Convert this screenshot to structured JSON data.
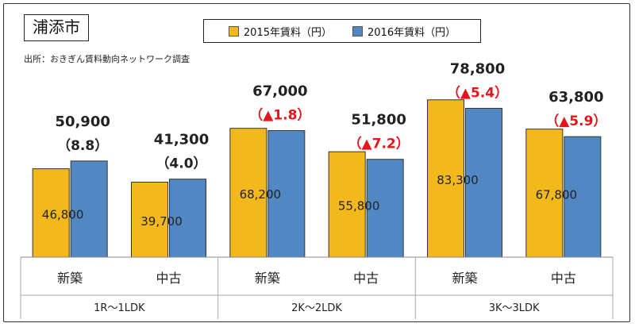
{
  "city": "浦添市",
  "source": "出所：おきぎん賃料動向ネットワーク調査",
  "colors": {
    "y2015": "#F3B81B",
    "y2016": "#5188C4",
    "red": "#E8141B"
  },
  "chart_data": {
    "type": "bar",
    "ylim": [
      0,
      100000
    ],
    "groups": [
      {
        "label": "1R～1LDK",
        "categories": [
          "新築",
          "中古"
        ]
      },
      {
        "label": "2K～2LDK",
        "categories": [
          "新築",
          "中古"
        ]
      },
      {
        "label": "3K～3LDK",
        "categories": [
          "新築",
          "中古"
        ]
      }
    ],
    "categories": [
      "新築",
      "中古",
      "新築",
      "中古",
      "新築",
      "中古"
    ],
    "series": [
      {
        "name": "2015年賃料（円）",
        "values": [
          46800,
          39700,
          68200,
          55800,
          83300,
          67800
        ],
        "labels": [
          "46,800",
          "39,700",
          "68,200",
          "55,800",
          "83,300",
          "67,800"
        ]
      },
      {
        "name": "2016年賃料（円）",
        "values": [
          50900,
          41300,
          67000,
          51800,
          78800,
          63800
        ],
        "labels": [
          "50,900",
          "41,300",
          "67,000",
          "51,800",
          "78,800",
          "63,800"
        ]
      }
    ],
    "change_labels": [
      "（8.8）",
      "（4.0）",
      "（▲1.8）",
      "（▲7.2）",
      "（▲5.4）",
      "（▲5.9）"
    ],
    "change_negative": [
      false,
      false,
      true,
      true,
      true,
      true
    ]
  }
}
